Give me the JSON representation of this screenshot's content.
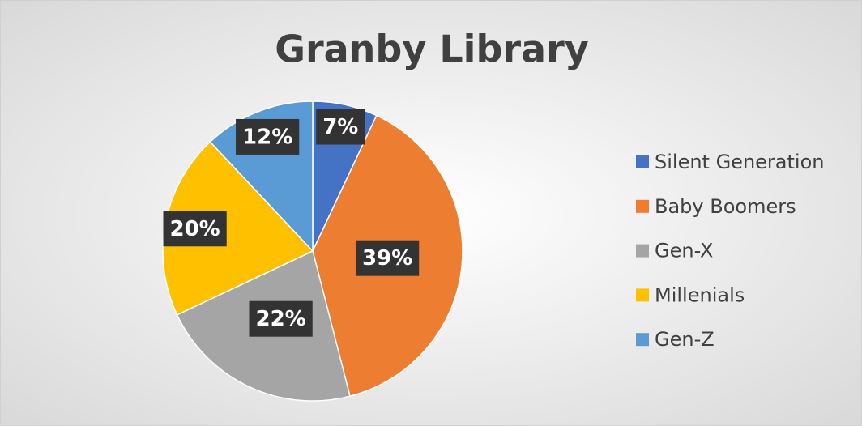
{
  "chart_data": {
    "type": "pie",
    "title": "Granby Library",
    "categories": [
      "Silent Generation",
      "Baby Boomers",
      "Gen-X",
      "Millenials",
      "Gen-Z"
    ],
    "values": [
      7,
      39,
      22,
      20,
      12
    ],
    "value_labels": [
      "7%",
      "39%",
      "22%",
      "20%",
      "12%"
    ],
    "colors": [
      "#4472c4",
      "#ed7d31",
      "#a5a5a5",
      "#ffc000",
      "#5b9bd5"
    ],
    "legend": "right"
  }
}
